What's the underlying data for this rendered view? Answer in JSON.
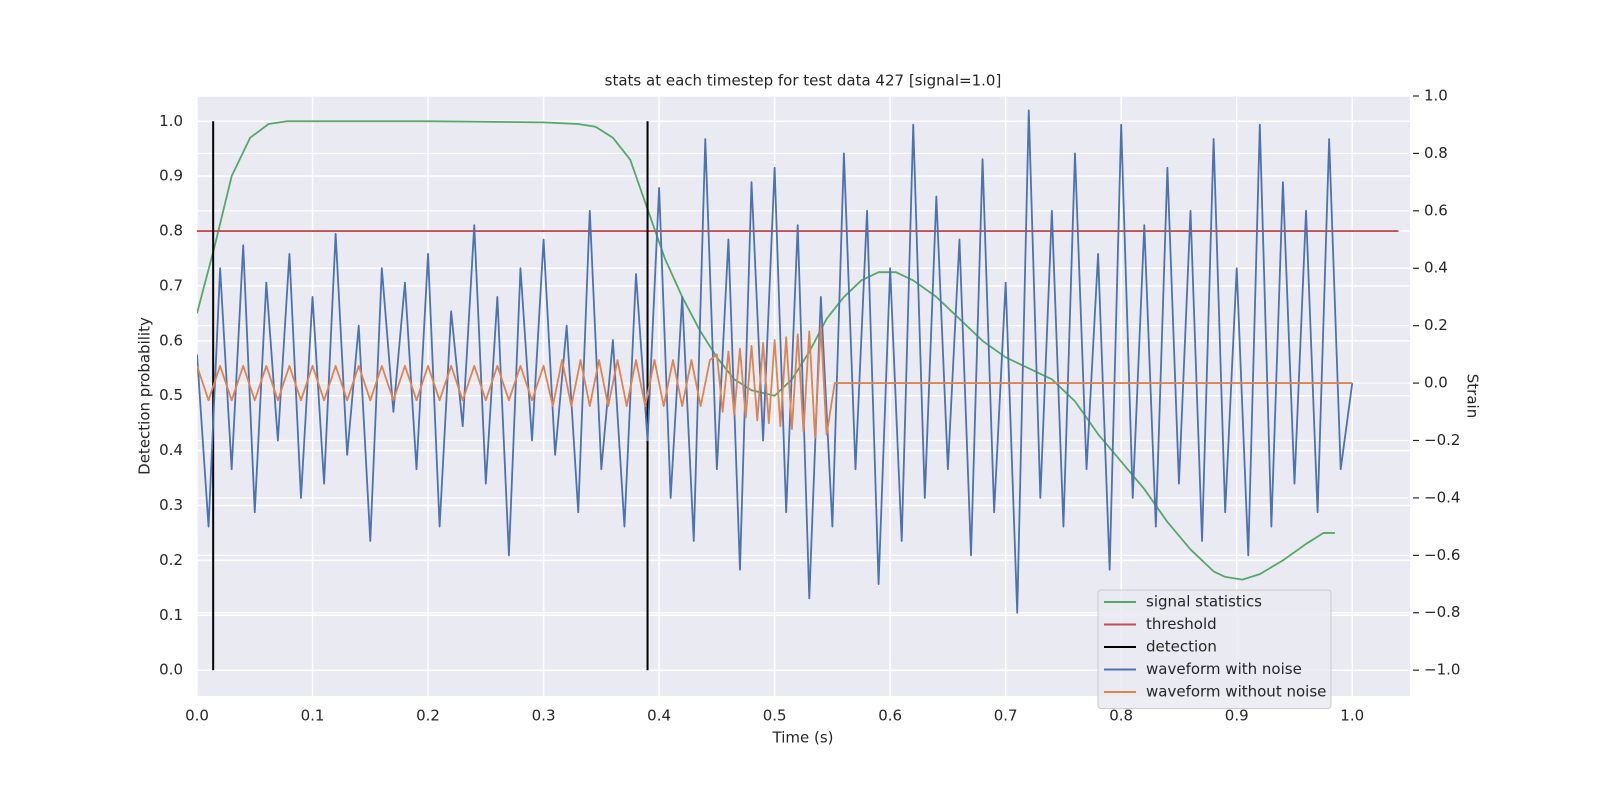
{
  "chart_data": {
    "type": "line",
    "title": "stats at each timestep for test data 427 [signal=1.0]",
    "x_label": "Time (s)",
    "y_label": "Detection probability",
    "y2_label": "Strain",
    "xlim": [
      0,
      1.05
    ],
    "ylim": [
      -0.047,
      1.046
    ],
    "y2lim": [
      -1.09,
      1.0
    ],
    "xticks": [
      {
        "value": 0,
        "label": "0.0"
      },
      {
        "value": 0.1,
        "label": "0.1"
      },
      {
        "value": 0.2,
        "label": "0.2"
      },
      {
        "value": 0.3,
        "label": "0.3"
      },
      {
        "value": 0.4,
        "label": "0.4"
      },
      {
        "value": 0.5,
        "label": "0.5"
      },
      {
        "value": 0.6,
        "label": "0.6"
      },
      {
        "value": 0.7,
        "label": "0.7"
      },
      {
        "value": 0.8,
        "label": "0.8"
      },
      {
        "value": 0.9,
        "label": "0.9"
      },
      {
        "value": 1,
        "label": "1.0"
      }
    ],
    "yticks": [
      {
        "value": 0,
        "label": "0.0"
      },
      {
        "value": 0.1,
        "label": "0.1"
      },
      {
        "value": 0.2,
        "label": "0.2"
      },
      {
        "value": 0.3,
        "label": "0.3"
      },
      {
        "value": 0.4,
        "label": "0.4"
      },
      {
        "value": 0.5,
        "label": "0.5"
      },
      {
        "value": 0.6,
        "label": "0.6"
      },
      {
        "value": 0.7,
        "label": "0.7"
      },
      {
        "value": 0.8,
        "label": "0.8"
      },
      {
        "value": 0.9,
        "label": "0.9"
      },
      {
        "value": 1,
        "label": "1.0"
      }
    ],
    "y2ticks": [
      {
        "value": -1,
        "label": "−1.0"
      },
      {
        "value": -0.8,
        "label": "−0.8"
      },
      {
        "value": -0.6,
        "label": "−0.6"
      },
      {
        "value": -0.4,
        "label": "−0.4"
      },
      {
        "value": -0.2,
        "label": "−0.2"
      },
      {
        "value": 0,
        "label": "0.0"
      },
      {
        "value": 0.2,
        "label": "0.2"
      },
      {
        "value": 0.4,
        "label": "0.4"
      },
      {
        "value": 0.6,
        "label": "0.6"
      },
      {
        "value": 0.8,
        "label": "0.8"
      },
      {
        "value": 1,
        "label": "1.0"
      }
    ],
    "grid": true,
    "legend": "lower right",
    "series": [
      {
        "name": "signal statistics",
        "color": "#55a868",
        "axis": "y",
        "x": [
          0,
          0.015,
          0.03,
          0.046,
          0.062,
          0.078,
          0.1,
          0.2,
          0.3,
          0.33,
          0.345,
          0.36,
          0.375,
          0.39,
          0.405,
          0.42,
          0.435,
          0.45,
          0.465,
          0.48,
          0.5,
          0.515,
          0.53,
          0.545,
          0.56,
          0.575,
          0.59,
          0.605,
          0.62,
          0.64,
          0.66,
          0.68,
          0.7,
          0.72,
          0.74,
          0.76,
          0.78,
          0.8,
          0.82,
          0.84,
          0.86,
          0.88,
          0.89,
          0.905,
          0.92,
          0.94,
          0.96,
          0.975,
          0.985
        ],
        "values": [
          0.65,
          0.77,
          0.9,
          0.97,
          0.995,
          1.0,
          1.0,
          1.0,
          0.998,
          0.995,
          0.99,
          0.97,
          0.93,
          0.84,
          0.75,
          0.68,
          0.62,
          0.57,
          0.53,
          0.51,
          0.5,
          0.53,
          0.58,
          0.64,
          0.68,
          0.71,
          0.725,
          0.725,
          0.71,
          0.68,
          0.64,
          0.6,
          0.57,
          0.55,
          0.53,
          0.49,
          0.43,
          0.38,
          0.33,
          0.27,
          0.22,
          0.18,
          0.17,
          0.165,
          0.175,
          0.2,
          0.23,
          0.25,
          0.25
        ]
      },
      {
        "name": "threshold",
        "color": "#c44e52",
        "axis": "y",
        "x": [
          0,
          1.04
        ],
        "values": [
          0.8,
          0.8
        ]
      },
      {
        "name": "detection",
        "color": "#000000",
        "axis": "y",
        "x": [
          0.014,
          0.39
        ],
        "ymin": 0,
        "ymax": 1
      },
      {
        "name": "waveform with noise",
        "color": "#4c72b0",
        "axis": "y2",
        "x": [
          0,
          0.01,
          0.02,
          0.03,
          0.04,
          0.05,
          0.06,
          0.07,
          0.08,
          0.09,
          0.1,
          0.11,
          0.12,
          0.13,
          0.14,
          0.15,
          0.16,
          0.17,
          0.18,
          0.19,
          0.2,
          0.21,
          0.22,
          0.23,
          0.24,
          0.25,
          0.26,
          0.27,
          0.28,
          0.29,
          0.3,
          0.31,
          0.32,
          0.33,
          0.34,
          0.35,
          0.36,
          0.37,
          0.38,
          0.39,
          0.4,
          0.41,
          0.42,
          0.43,
          0.44,
          0.45,
          0.46,
          0.47,
          0.48,
          0.49,
          0.5,
          0.51,
          0.52,
          0.53,
          0.54,
          0.55,
          0.56,
          0.57,
          0.58,
          0.59,
          0.6,
          0.61,
          0.62,
          0.63,
          0.64,
          0.65,
          0.66,
          0.67,
          0.68,
          0.69,
          0.7,
          0.71,
          0.72,
          0.73,
          0.74,
          0.75,
          0.76,
          0.77,
          0.78,
          0.79,
          0.8,
          0.81,
          0.82,
          0.83,
          0.84,
          0.85,
          0.86,
          0.87,
          0.88,
          0.89,
          0.9,
          0.91,
          0.92,
          0.93,
          0.94,
          0.95,
          0.96,
          0.97,
          0.98,
          0.99,
          1.0
        ],
        "values": [
          0.1,
          -0.5,
          0.4,
          -0.3,
          0.48,
          -0.45,
          0.35,
          -0.2,
          0.45,
          -0.4,
          0.3,
          -0.35,
          0.52,
          -0.25,
          0.2,
          -0.55,
          0.4,
          -0.1,
          0.35,
          -0.3,
          0.45,
          -0.5,
          0.25,
          -0.15,
          0.55,
          -0.35,
          0.3,
          -0.6,
          0.4,
          -0.2,
          0.5,
          -0.25,
          0.2,
          -0.45,
          0.6,
          -0.3,
          0.15,
          -0.5,
          0.38,
          -0.2,
          0.68,
          -0.4,
          0.3,
          -0.55,
          0.85,
          -0.3,
          0.5,
          -0.65,
          0.7,
          -0.2,
          0.75,
          -0.45,
          0.55,
          -0.75,
          0.3,
          -0.5,
          0.8,
          -0.3,
          0.6,
          -0.7,
          0.4,
          -0.55,
          0.9,
          -0.4,
          0.65,
          -0.3,
          0.5,
          -0.6,
          0.78,
          -0.45,
          0.35,
          -0.8,
          0.95,
          -0.4,
          0.6,
          -0.5,
          0.8,
          -0.3,
          0.45,
          -0.65,
          0.9,
          -0.4,
          0.55,
          -0.5,
          0.75,
          -0.35,
          0.6,
          -0.55,
          0.85,
          -0.45,
          0.4,
          -0.6,
          0.9,
          -0.5,
          0.7,
          -0.35,
          0.6,
          -0.45,
          0.85,
          -0.3,
          0.0
        ]
      },
      {
        "name": "waveform without noise",
        "color": "#dd8452",
        "axis": "y2",
        "x": [
          0,
          0.01,
          0.02,
          0.03,
          0.04,
          0.05,
          0.06,
          0.07,
          0.08,
          0.09,
          0.1,
          0.11,
          0.12,
          0.13,
          0.14,
          0.15,
          0.16,
          0.17,
          0.18,
          0.19,
          0.2,
          0.21,
          0.22,
          0.23,
          0.24,
          0.25,
          0.26,
          0.27,
          0.28,
          0.29,
          0.3,
          0.308,
          0.316,
          0.324,
          0.332,
          0.34,
          0.348,
          0.356,
          0.364,
          0.372,
          0.38,
          0.388,
          0.396,
          0.404,
          0.412,
          0.42,
          0.428,
          0.436,
          0.444,
          0.45,
          0.455,
          0.46,
          0.465,
          0.47,
          0.475,
          0.48,
          0.485,
          0.49,
          0.495,
          0.5,
          0.505,
          0.51,
          0.515,
          0.52,
          0.525,
          0.53,
          0.535,
          0.54,
          0.545,
          0.552,
          1.0
        ],
        "values": [
          0.06,
          -0.06,
          0.06,
          -0.06,
          0.06,
          -0.06,
          0.06,
          -0.06,
          0.06,
          -0.06,
          0.06,
          -0.06,
          0.06,
          -0.06,
          0.06,
          -0.06,
          0.06,
          -0.06,
          0.06,
          -0.06,
          0.06,
          -0.06,
          0.06,
          -0.06,
          0.06,
          -0.06,
          0.06,
          -0.06,
          0.06,
          -0.06,
          0.06,
          -0.08,
          0.08,
          -0.08,
          0.08,
          -0.08,
          0.08,
          -0.08,
          0.08,
          -0.08,
          0.08,
          -0.08,
          0.08,
          -0.08,
          0.08,
          -0.08,
          0.08,
          -0.08,
          0.08,
          0.1,
          -0.1,
          0.11,
          -0.11,
          0.12,
          -0.12,
          0.13,
          -0.13,
          0.14,
          -0.14,
          0.15,
          -0.15,
          0.16,
          -0.16,
          0.17,
          -0.17,
          0.18,
          -0.19,
          0.2,
          -0.18,
          0,
          0
        ]
      }
    ]
  }
}
